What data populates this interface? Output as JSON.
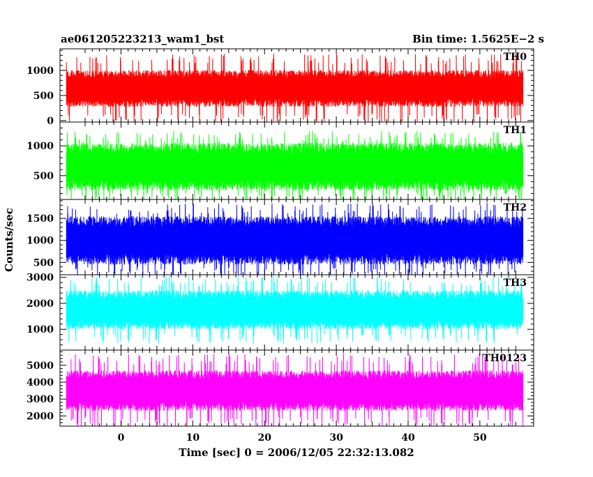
{
  "chart_data": {
    "type": "line",
    "title": "ae061205223213_wam1_bst",
    "subtitle": "Bin time: 1.5625E−2 s",
    "xlabel": "Time [sec] 0 = 2006/12/05 22:32:13.082",
    "ylabel": "Counts/sec",
    "xlim": [
      -8.5,
      57.5
    ],
    "data_xrange": [
      -7.6,
      56.0
    ],
    "x_ticks": [
      0,
      10,
      20,
      30,
      40,
      50
    ],
    "x_tick_labels": [
      "0",
      "10",
      "20",
      "30",
      "40",
      "50"
    ],
    "grid": false,
    "legend": "none",
    "panels": [
      {
        "name": "TH0",
        "color": "#ff0000",
        "ylim": [
          -30,
          1430
        ],
        "ticks": [
          0,
          500,
          1000
        ],
        "tick_labels": [
          "0",
          "500",
          "1000"
        ],
        "typical_low": 270,
        "typical_high": 1000,
        "mean": 640,
        "min_spike": 40,
        "max_spike": 1430
      },
      {
        "name": "TH1",
        "color": "#00ff00",
        "ylim": [
          100,
          1400
        ],
        "ticks": [
          500,
          1000
        ],
        "tick_labels": [
          "500",
          "1000"
        ],
        "typical_low": 250,
        "typical_high": 1050,
        "mean": 650,
        "min_spike": 100,
        "max_spike": 1300
      },
      {
        "name": "TH2",
        "color": "#0000ff",
        "ylim": [
          220,
          1930
        ],
        "ticks": [
          500,
          1000,
          1500
        ],
        "tick_labels": [
          "500",
          "1000",
          "1500"
        ],
        "typical_low": 450,
        "typical_high": 1550,
        "mean": 1000,
        "min_spike": 220,
        "max_spike": 1930
      },
      {
        "name": "TH3",
        "color": "#00ffff",
        "ylim": [
          200,
          3100
        ],
        "ticks": [
          1000,
          2000,
          3000
        ],
        "tick_labels": [
          "1000",
          "2000",
          "3000"
        ],
        "typical_low": 1000,
        "typical_high": 2500,
        "mean": 1750,
        "min_spike": 500,
        "max_spike": 3100
      },
      {
        "name": "TH0123",
        "color": "#ff00ff",
        "ylim": [
          1400,
          5900
        ],
        "ticks": [
          2000,
          3000,
          4000,
          5000
        ],
        "tick_labels": [
          "2000",
          "3000",
          "4000",
          "5000"
        ],
        "typical_low": 2300,
        "typical_high": 4700,
        "mean": 3500,
        "min_spike": 1500,
        "max_spike": 5900
      }
    ]
  }
}
